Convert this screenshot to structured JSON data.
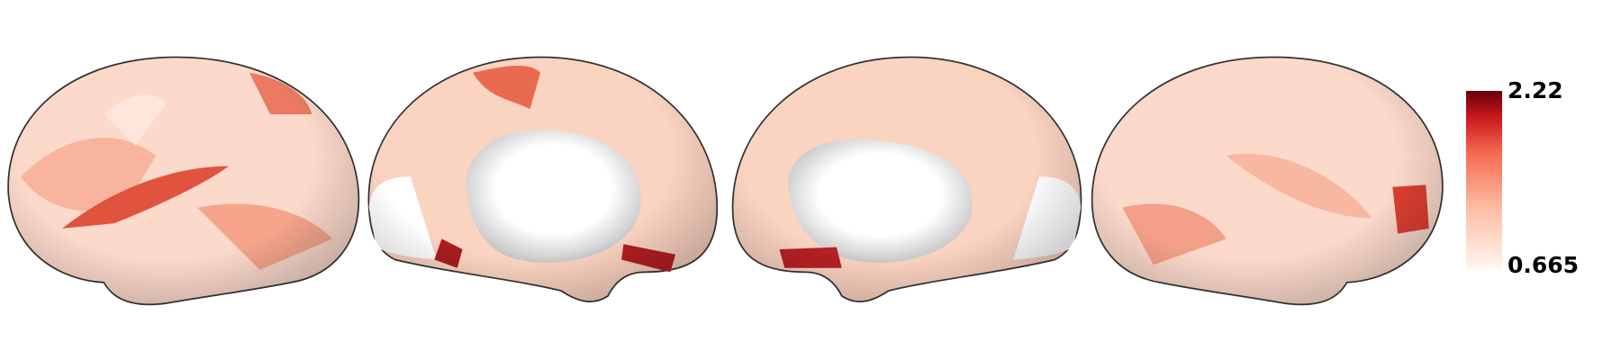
{
  "colorbar": {
    "max": 2.22,
    "min": 0.665
  }
}
